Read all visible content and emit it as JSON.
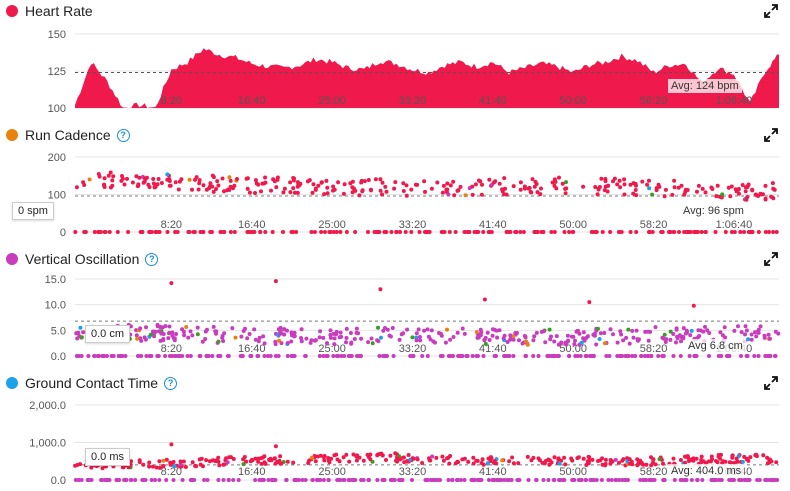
{
  "colors": {
    "red": "#f0194b",
    "orange": "#e8820c",
    "magenta": "#c83cbd",
    "blue": "#1aa3e8",
    "green": "#3a9d25"
  },
  "x_tick_labels": [
    "8:20",
    "16:40",
    "25:00",
    "33:20",
    "41:40",
    "50:00",
    "58:20",
    "1:06:40"
  ],
  "charts": [
    {
      "name": "Heart Rate",
      "help": false,
      "ytick_labels": [
        "150",
        "125",
        "100"
      ],
      "avg_label": "Avg: 124 bpm",
      "hover_label": ""
    },
    {
      "name": "Run Cadence",
      "help": true,
      "ytick_labels": [
        "200",
        "100",
        "0"
      ],
      "avg_label": "Avg: 96 spm",
      "hover_label": "0 spm"
    },
    {
      "name": "Vertical Oscillation",
      "help": true,
      "ytick_labels": [
        "15.0",
        "10.0",
        "5.0",
        "0.0"
      ],
      "avg_label": "Avg 6.8 cm",
      "hover_label": "0.0 cm"
    },
    {
      "name": "Ground Contact Time",
      "help": true,
      "ytick_labels": [
        "2,000.0",
        "1,000.0",
        "0.0"
      ],
      "avg_label": "Avg: 404.0 ms",
      "hover_label": "0.0 ms"
    }
  ],
  "chart_data": [
    {
      "type": "area",
      "title": "Heart Rate",
      "ylim": [
        100,
        150
      ],
      "xlim_seconds": [
        0,
        4380
      ],
      "average": 124,
      "x": [
        "0:00",
        "1:40",
        "3:20",
        "5:00",
        "6:40",
        "8:20",
        "10:00",
        "11:40",
        "13:20",
        "15:00",
        "16:40",
        "18:20",
        "20:00",
        "21:40",
        "23:20",
        "25:00",
        "26:40",
        "28:20",
        "30:00",
        "31:40",
        "33:20",
        "35:00",
        "36:40",
        "38:20",
        "40:00",
        "41:40",
        "43:20",
        "45:00",
        "46:40",
        "48:20",
        "50:00",
        "51:40",
        "53:20",
        "55:00",
        "56:40",
        "58:20",
        "1:00:00",
        "1:01:40",
        "1:03:20",
        "1:05:00",
        "1:06:40",
        "1:08:20",
        "1:10:00",
        "1:11:40",
        "1:13:00"
      ],
      "y": [
        102,
        131,
        118,
        100,
        102,
        100,
        126,
        131,
        140,
        136,
        134,
        130,
        128,
        127,
        129,
        133,
        131,
        127,
        126,
        132,
        130,
        126,
        124,
        129,
        131,
        128,
        131,
        124,
        127,
        130,
        128,
        124,
        129,
        131,
        135,
        132,
        124,
        129,
        130,
        117,
        127,
        123,
        103,
        126,
        136
      ]
    },
    {
      "type": "scatter",
      "title": "Run Cadence",
      "ylim": [
        0,
        200
      ],
      "average": 96,
      "x": [
        "8:20",
        "16:40",
        "25:00",
        "33:20",
        "41:40",
        "50:00",
        "58:20",
        "1:06:40"
      ],
      "y_typical": [
        138,
        125,
        122,
        118,
        120,
        124,
        120,
        108
      ],
      "zero_readings": true
    },
    {
      "type": "scatter",
      "title": "Vertical Oscillation",
      "ylim": [
        0,
        15
      ],
      "average": 6.8,
      "x": [
        "8:20",
        "16:40",
        "25:00",
        "33:20",
        "41:40",
        "50:00",
        "58:20",
        "1:06:40"
      ],
      "y_typical": [
        4.5,
        4.0,
        3.8,
        4.2,
        3.9,
        3.6,
        4.0,
        4.3
      ],
      "outliers": [
        14.2,
        14.6,
        13.0,
        11.0,
        10.5,
        9.8
      ],
      "zero_readings": true
    },
    {
      "type": "scatter",
      "title": "Ground Contact Time",
      "ylim": [
        0,
        2000
      ],
      "average": 404.0,
      "x": [
        "8:20",
        "16:40",
        "25:00",
        "33:20",
        "41:40",
        "50:00",
        "58:20",
        "1:06:40"
      ],
      "y_typical": [
        420,
        520,
        560,
        600,
        500,
        520,
        480,
        560
      ],
      "outliers": [
        950,
        900
      ],
      "zero_readings": true
    }
  ]
}
